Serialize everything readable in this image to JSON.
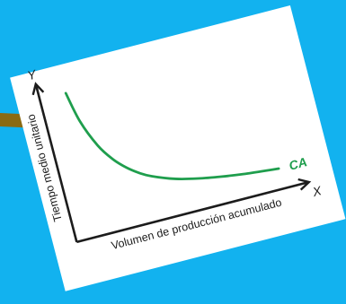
{
  "chart_data": {
    "type": "line",
    "title": "",
    "xlabel": "Volumen de producción acumulado",
    "ylabel": "Tiempo medio unitario",
    "x_axis_letter": "X",
    "y_axis_letter": "Y",
    "xlim": [
      0,
      10
    ],
    "ylim": [
      0,
      10
    ],
    "grid": false,
    "series": [
      {
        "name": "CA",
        "color": "#1f9e4d",
        "x": [
          1.2,
          1.5,
          2.0,
          2.5,
          3.0,
          3.5,
          4.0,
          5.0,
          6.0,
          7.0,
          8.0,
          9.0,
          9.6
        ],
        "y": [
          9.4,
          7.4,
          5.6,
          4.5,
          3.75,
          3.2,
          2.8,
          2.25,
          1.9,
          1.65,
          1.45,
          1.3,
          1.22
        ]
      }
    ]
  },
  "colors": {
    "background": "#12b2ef",
    "card": "#ffffff",
    "axis": "#1c1c1c",
    "pin": "#8a6a12"
  }
}
